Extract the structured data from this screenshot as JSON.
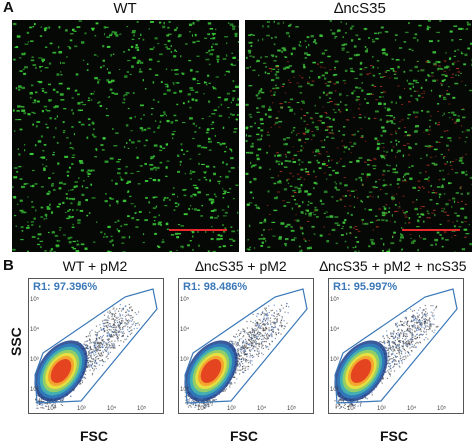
{
  "panel_a": {
    "letter": "A",
    "images": [
      {
        "title": "WT",
        "green": "#3cd23a",
        "red_density": 0.0
      },
      {
        "title": "∆ncS35",
        "green": "#3fc83c",
        "red_density": 0.55
      }
    ],
    "scale_bar_color": "#e8262b"
  },
  "panel_b": {
    "letter": "B",
    "y_axis_label": "SSC",
    "x_axis_label": "FSC",
    "gate_color": "#3a78b8",
    "plots": [
      {
        "title": "WT + pM2",
        "gate": "R1: 97.396%"
      },
      {
        "title": "∆ncS35 + pM2",
        "gate": "R1: 98.486%"
      },
      {
        "title": "∆ncS35 + pM2 + ncS35",
        "gate": "R1: 95.997%"
      }
    ],
    "ticks_y": [
      "10⁵",
      "10⁴",
      "10³",
      "10²"
    ],
    "ticks_x": [
      "10²",
      "10³",
      "10⁴",
      "10⁵"
    ]
  }
}
